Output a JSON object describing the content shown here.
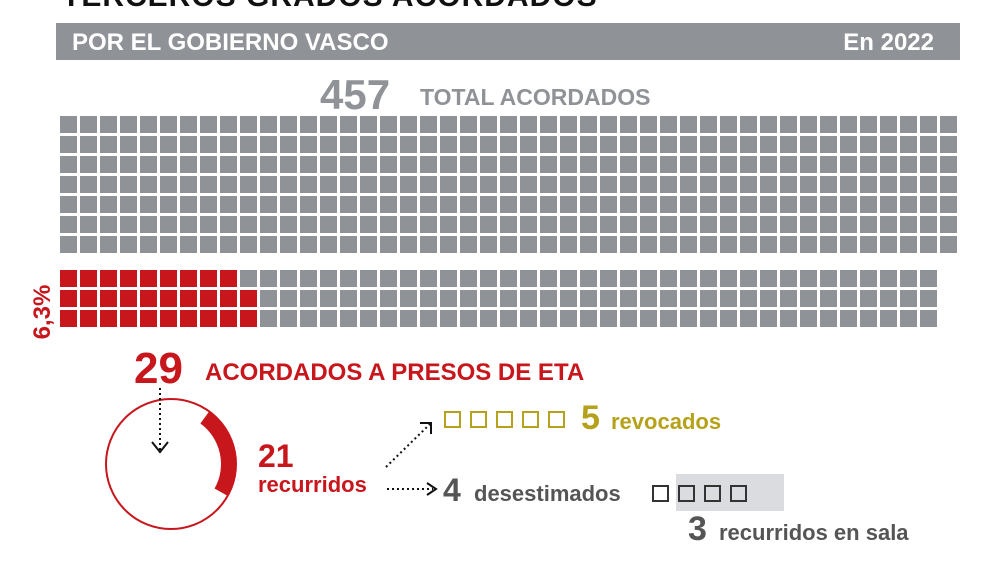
{
  "header": {
    "title": "TERCEROS GRADOS ACORDADOS",
    "subtitle": "POR EL GOBIERNO VASCO",
    "year_label": "En 2022"
  },
  "colors": {
    "grey": "#8f9297",
    "red": "#c8161d",
    "olive": "#b5a21a",
    "dark_grey": "#555555"
  },
  "chart_data": {
    "type": "waffle",
    "total": {
      "value": 457,
      "label": "TOTAL ACORDADOS",
      "display": "457"
    },
    "eta": {
      "value": 29,
      "label": "ACORDADOS A PRESOS DE ETA",
      "display": "29",
      "percent_label": "6,3%"
    },
    "breakdown": [
      {
        "key": "recurridos",
        "value": 21,
        "display": "21",
        "label": "recurridos"
      },
      {
        "key": "revocados",
        "value": 5,
        "display": "5",
        "label": "revocados"
      },
      {
        "key": "desestimados",
        "value": 4,
        "display": "4",
        "label": "desestimados"
      },
      {
        "key": "recurridos_sala",
        "value": 3,
        "display": "3",
        "label": "recurridos en sala"
      }
    ]
  }
}
